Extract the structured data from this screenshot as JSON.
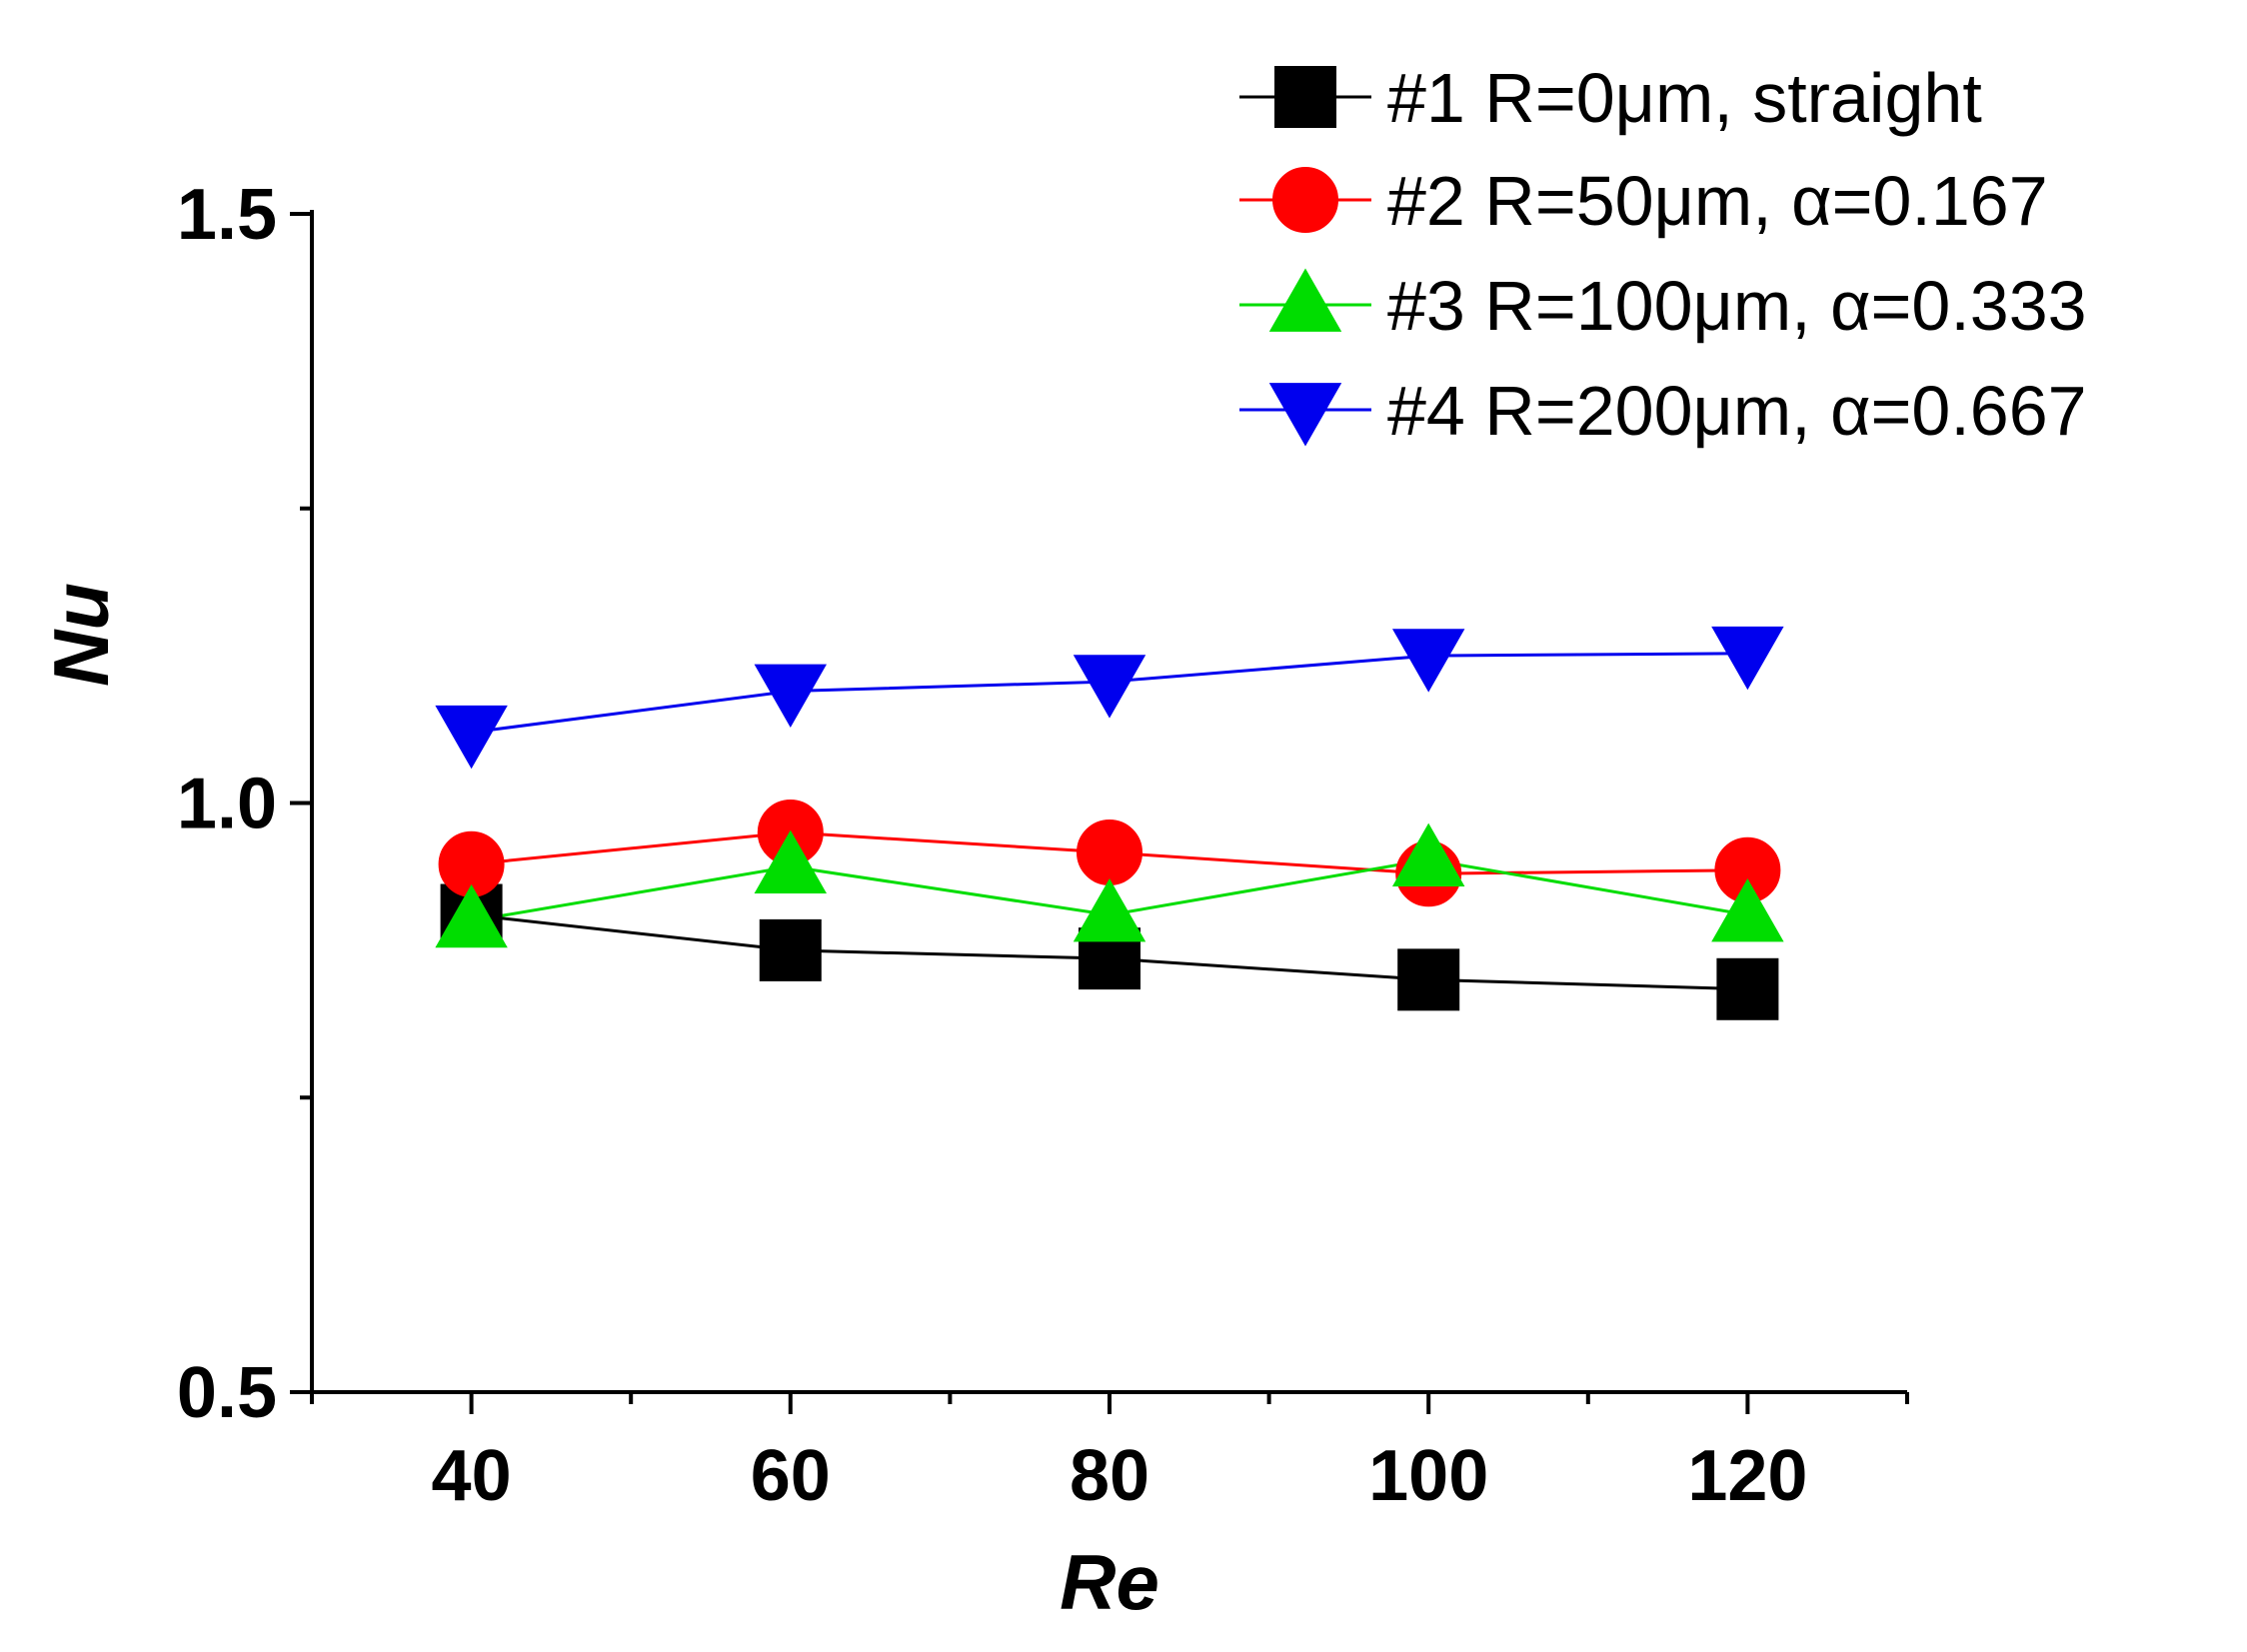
{
  "chart_data": {
    "type": "line",
    "title": "",
    "xlabel": "Re",
    "ylabel": "Nu",
    "x": [
      40,
      60,
      80,
      100,
      120
    ],
    "xlim": [
      30,
      130
    ],
    "ylim": [
      0.5,
      1.5
    ],
    "x_ticks": [
      40,
      60,
      80,
      100,
      120
    ],
    "x_tick_labels": [
      "40",
      "60",
      "80",
      "100",
      "120"
    ],
    "x_minor_ticks": [
      30,
      50,
      70,
      90,
      110,
      130
    ],
    "y_ticks": [
      0.5,
      1.0,
      1.5
    ],
    "y_tick_labels": [
      "0.5",
      "1.0",
      "1.5"
    ],
    "y_minor_ticks": [
      0.75,
      1.25
    ],
    "grid": false,
    "legend_position": "top-right",
    "series": [
      {
        "name": "#1 R=0μm, straight",
        "color": "#000000",
        "marker": "square",
        "values": [
          0.905,
          0.875,
          0.868,
          0.85,
          0.842
        ]
      },
      {
        "name": "#2 R=50μm, α=0.167",
        "color": "#ff0000",
        "marker": "circle",
        "values": [
          0.948,
          0.975,
          0.958,
          0.94,
          0.943
        ]
      },
      {
        "name": "#3 R=100μm, α=0.333",
        "color": "#00dd00",
        "marker": "triangle-up",
        "values": [
          0.9,
          0.946,
          0.905,
          0.952,
          0.905
        ]
      },
      {
        "name": "#4 R=200μm, α=0.667",
        "color": "#0000ee",
        "marker": "triangle-down",
        "values": [
          1.06,
          1.095,
          1.103,
          1.125,
          1.127
        ]
      }
    ]
  }
}
